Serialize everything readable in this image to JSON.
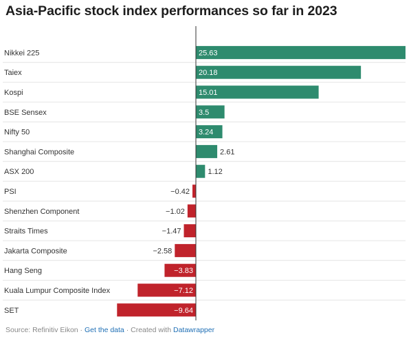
{
  "title": "Asia-Pacific stock index performances so far in 2023",
  "footer": {
    "source": "Source: Refinitiv Eikon",
    "sep1": " · ",
    "get_data": "Get the data",
    "sep2": " · Created with ",
    "tool": "Datawrapper"
  },
  "chart_data": {
    "type": "bar",
    "orientation": "horizontal",
    "categories": [
      "Nikkei 225",
      "Taiex",
      "Kospi",
      "BSE Sensex",
      "Nifty 50",
      "Shanghai Composite",
      "ASX 200",
      "PSI",
      "Shenzhen Component",
      "Straits Times",
      "Jakarta Composite",
      "Hang Seng",
      "Kuala Lumpur Composite Index",
      "SET"
    ],
    "values": [
      25.63,
      20.18,
      15.01,
      3.5,
      3.24,
      2.61,
      1.12,
      -0.42,
      -1.02,
      -1.47,
      -2.58,
      -3.83,
      -7.12,
      -9.64
    ],
    "labels": [
      "25.63",
      "20.18",
      "15.01",
      "3.5",
      "3.24",
      "2.61",
      "1.12",
      "−0.42",
      "−1.02",
      "−1.47",
      "−2.58",
      "−3.83",
      "−7.12",
      "−9.64"
    ],
    "colors": {
      "positive": "#2e8b6e",
      "negative": "#c0232b"
    },
    "grid": false
  }
}
